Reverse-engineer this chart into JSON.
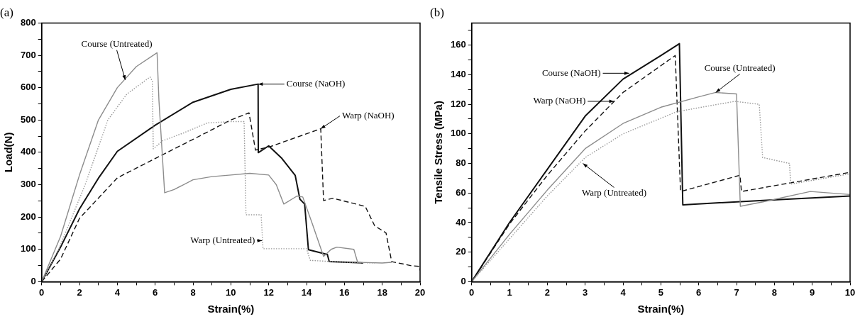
{
  "chart_data": [
    {
      "type": "line",
      "title": "(a)",
      "xlabel": "Strain(%)",
      "ylabel": "Load(N)",
      "xlim": [
        0,
        20
      ],
      "ylim": [
        0,
        800
      ],
      "xticks": [
        0,
        {
          "value": 1,
          "label": null
        },
        2,
        {
          "value": 3,
          "label": null
        },
        4,
        {
          "value": 5,
          "label": null
        },
        6,
        {
          "value": 7,
          "label": null
        },
        8,
        {
          "value": 9,
          "label": null
        },
        10,
        {
          "value": 11,
          "label": null
        },
        12,
        {
          "value": 13,
          "label": null
        },
        14,
        {
          "value": 15,
          "label": null
        },
        16,
        {
          "value": 17,
          "label": null
        },
        18,
        {
          "value": 19,
          "label": null
        },
        20
      ],
      "yticks": [
        0,
        {
          "value": 50,
          "label": null
        },
        100,
        {
          "value": 150,
          "label": null
        },
        200,
        {
          "value": 250,
          "label": null
        },
        300,
        {
          "value": 350,
          "label": null
        },
        400,
        {
          "value": 450,
          "label": null
        },
        500,
        {
          "value": 550,
          "label": null
        },
        600,
        {
          "value": 650,
          "label": null
        },
        700,
        {
          "value": 750,
          "label": null
        },
        800
      ],
      "series": [
        {
          "color": "#8c8c8c",
          "line_style": "solid",
          "x": [
            0,
            0.5,
            1,
            2,
            3,
            4,
            5,
            6.1,
            6.2,
            6.5,
            7,
            8,
            9,
            10,
            11,
            12,
            12.4,
            12.8,
            13.5,
            13.8,
            14.3,
            14.9,
            15.3,
            15.6,
            16.5,
            16.7,
            18,
            18.5
          ],
          "values": [
            0,
            70,
            140,
            330,
            500,
            600,
            665,
            708,
            560,
            275,
            285,
            315,
            325,
            330,
            335,
            330,
            300,
            240,
            265,
            262,
            180,
            78,
            100,
            107,
            100,
            60,
            58,
            60
          ]
        },
        {
          "color": "#9a9a9a",
          "line_style": "dotted",
          "x": [
            0,
            0.9,
            2.3,
            3.5,
            4.5,
            5.73,
            5.85,
            5.9,
            6.4,
            7.5,
            8.76,
            10,
            10.7,
            10.8,
            11.6,
            11.7,
            14,
            14.2,
            16,
            17.6
          ],
          "values": [
            0,
            100,
            300,
            500,
            580,
            633,
            620,
            411,
            436,
            460,
            491,
            495,
            495,
            207,
            207,
            102,
            102,
            66,
            60,
            58
          ]
        },
        {
          "color": "#111111",
          "line_style": "solid",
          "x": [
            0,
            1,
            2,
            3,
            4,
            6,
            8,
            10,
            11.44,
            11.45,
            12,
            12.7,
            13.4,
            13.65,
            13.9,
            14.1,
            15.1,
            15.2,
            17
          ],
          "values": [
            0,
            107,
            225,
            320,
            403,
            484,
            555,
            595,
            611,
            399,
            420,
            381,
            329,
            255,
            240,
            99,
            84,
            62,
            58
          ]
        },
        {
          "color": "#111111",
          "line_style": "dashed",
          "x": [
            0,
            1,
            2,
            4,
            6,
            8,
            10,
            10.96,
            11.3,
            12.1,
            14.75,
            14.9,
            15.4,
            17.1,
            17.6,
            18.2,
            18.5,
            19.5,
            20,
            20
          ],
          "values": [
            0,
            70,
            196,
            321,
            381,
            440,
            500,
            522,
            407,
            418,
            473,
            251,
            258,
            233,
            173,
            151,
            62,
            50,
            47,
            35
          ]
        }
      ],
      "annotations": [
        {
          "text": "Course (Untreated)",
          "x": 4.42,
          "y": 624
        },
        {
          "text": "Course (NaOH)",
          "x": 11.44,
          "y": 611
        },
        {
          "text": "Warp (NaOH)",
          "x": 14.75,
          "y": 473
        },
        {
          "text": "Warp (Untreated)",
          "x": 11.65,
          "y": 127
        }
      ]
    },
    {
      "type": "line",
      "title": "(b)",
      "xlabel": "Strain(%)",
      "ylabel": "Tensile Stress (MPa)",
      "xlim": [
        0,
        10
      ],
      "ylim": [
        0,
        175
      ],
      "xticks": [
        0,
        {
          "value": 0.5,
          "label": null
        },
        1,
        {
          "value": 1.5,
          "label": null
        },
        2,
        {
          "value": 2.5,
          "label": null
        },
        3,
        {
          "value": 3.5,
          "label": null
        },
        4,
        {
          "value": 4.5,
          "label": null
        },
        5,
        {
          "value": 5.5,
          "label": null
        },
        6,
        {
          "value": 6.5,
          "label": null
        },
        7,
        {
          "value": 7.5,
          "label": null
        },
        8,
        {
          "value": 8.5,
          "label": null
        },
        9,
        {
          "value": 9.5,
          "label": null
        },
        10
      ],
      "yticks": [
        0,
        {
          "value": 10,
          "label": null
        },
        20,
        {
          "value": 30,
          "label": null
        },
        40,
        {
          "value": 50,
          "label": null
        },
        60,
        {
          "value": 70,
          "label": null
        },
        80,
        {
          "value": 90,
          "label": null
        },
        100,
        {
          "value": 110,
          "label": null
        },
        120,
        {
          "value": 130,
          "label": null
        },
        140,
        {
          "value": 150,
          "label": null
        },
        160,
        {
          "value": 170,
          "label": null
        }
      ],
      "series": [
        {
          "color": "#8c8c8c",
          "line_style": "solid",
          "x": [
            0,
            1,
            2,
            3,
            4,
            5,
            6,
            6.45,
            7,
            7.1,
            7.7,
            8.95,
            10
          ],
          "values": [
            0,
            32,
            62,
            90,
            107,
            118,
            125,
            128,
            127,
            51,
            54,
            61,
            59
          ]
        },
        {
          "color": "#9a9a9a",
          "line_style": "dotted",
          "x": [
            0,
            1,
            2,
            3,
            4,
            5.42,
            6.95,
            7.6,
            7.69,
            8.4,
            8.43,
            10
          ],
          "values": [
            0,
            29,
            58,
            84,
            100,
            115,
            122,
            120,
            84,
            80,
            66,
            73
          ]
        },
        {
          "color": "#111111",
          "line_style": "solid",
          "x": [
            0,
            1,
            2,
            3,
            4,
            5,
            5.49,
            5.58,
            7.7,
            10
          ],
          "values": [
            0,
            40,
            76,
            112,
            137,
            153,
            161,
            52,
            55,
            58
          ]
        },
        {
          "color": "#111111",
          "line_style": "dashed",
          "x": [
            0,
            1,
            2,
            3,
            4,
            5.38,
            5.52,
            7.09,
            7.13,
            10
          ],
          "values": [
            0,
            39,
            72,
            102,
            128,
            153,
            61,
            72,
            61,
            74
          ]
        }
      ],
      "annotations": [
        {
          "text": "Course (NaOH)",
          "x": 4.16,
          "y": 141
        },
        {
          "text": "Warp (NaOH)",
          "x": 3.76,
          "y": 122
        },
        {
          "text": "Course (Untreated)",
          "x": 6.45,
          "y": 128
        },
        {
          "text": "Warp (Untreated)",
          "x": 2.94,
          "y": 80
        }
      ]
    }
  ]
}
